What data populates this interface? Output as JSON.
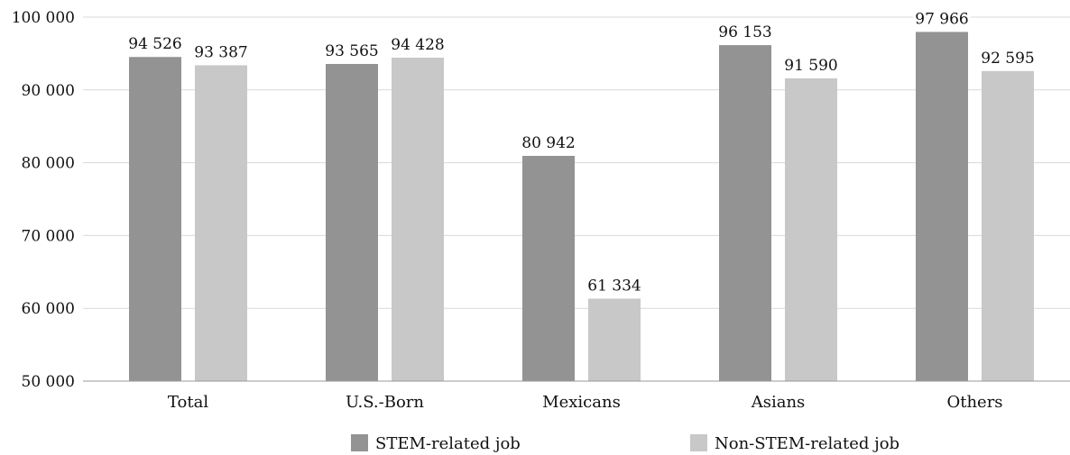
{
  "chart_data": {
    "type": "bar",
    "title": "",
    "xlabel": "",
    "ylabel": "",
    "categories": [
      "Total",
      "U.S.-Born",
      "Mexicans",
      "Asians",
      "Others"
    ],
    "series": [
      {
        "name": "STEM-related job",
        "color": "#939393",
        "values": [
          94526,
          93565,
          80942,
          96153,
          97966
        ],
        "labels": [
          "94 526",
          "93 565",
          "80 942",
          "96 153",
          "97 966"
        ]
      },
      {
        "name": "Non-STEM-related job",
        "color": "#c8c8c9",
        "values": [
          93387,
          94428,
          61334,
          91590,
          92595
        ],
        "labels": [
          "93 387",
          "94 428",
          "61 334",
          "91 590",
          "92 595"
        ]
      }
    ],
    "ylim": [
      50000,
      100000
    ],
    "yticks": [
      50000,
      60000,
      70000,
      80000,
      90000,
      100000
    ],
    "ytick_labels": [
      "50 000",
      "60 000",
      "70 000",
      "80 000",
      "90 000",
      "100 000"
    ],
    "grid": true,
    "legend_position": "bottom",
    "gridline_color": "#d9d9d9"
  }
}
